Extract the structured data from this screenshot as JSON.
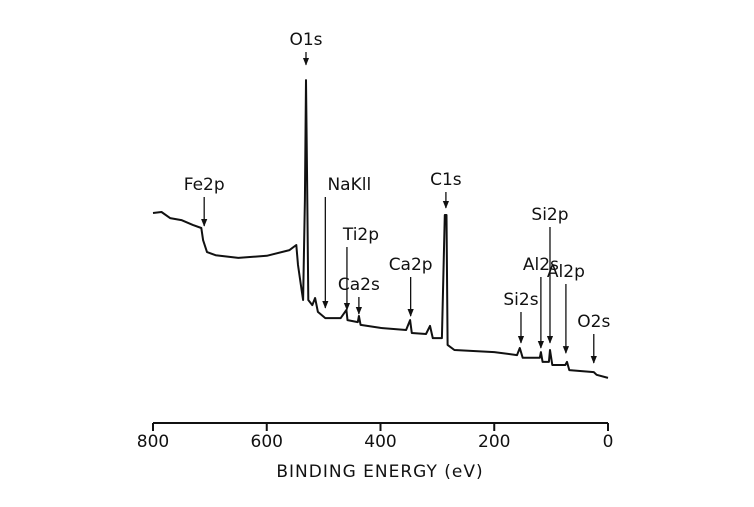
{
  "chart_data": {
    "type": "line",
    "x_label": "BINDING ENERGY (eV)",
    "xlim": [
      800,
      0
    ],
    "xticks": [
      800,
      600,
      400,
      200,
      0
    ],
    "ylim": [
      0,
      100
    ],
    "color": "#111111",
    "x": [
      800,
      785,
      770,
      750,
      730,
      715,
      712,
      705,
      690,
      650,
      600,
      560,
      548,
      545,
      540,
      536,
      533,
      531,
      529,
      527,
      520,
      515,
      510,
      497,
      470,
      460,
      458,
      440,
      438,
      435,
      400,
      355,
      348,
      345,
      320,
      313,
      308,
      292,
      287,
      284,
      282,
      270,
      200,
      160,
      155,
      150,
      120,
      118,
      115,
      104,
      102,
      98,
      75,
      72,
      68,
      25,
      20,
      0
    ],
    "values": [
      55,
      55.3,
      53.5,
      52.9,
      51.5,
      50.6,
      47,
      43.5,
      42.6,
      41.8,
      42.4,
      44.1,
      45.6,
      39.7,
      33.8,
      29.4,
      58.8,
      94.1,
      64.7,
      29.4,
      27.9,
      30,
      25.9,
      24.1,
      24.1,
      26.5,
      23.5,
      22.9,
      24.7,
      22.1,
      21.2,
      20.6,
      23.5,
      19.7,
      19.4,
      21.8,
      18.2,
      18.2,
      54.4,
      54.4,
      16.2,
      14.7,
      14.1,
      13.2,
      15.3,
      12.4,
      12.4,
      14.1,
      11.2,
      11.2,
      14.7,
      10.3,
      10.3,
      11.2,
      8.8,
      8.2,
      7.4,
      6.5
    ],
    "annotations": [
      {
        "text": "O1s",
        "x": 531,
        "y": 98
      },
      {
        "text": "Fe2p",
        "x": 710,
        "y": 50.6
      },
      {
        "text": "NaKll",
        "x": 497,
        "y": 26.5
      },
      {
        "text": "Ti2p",
        "x": 459,
        "y": 25.9
      },
      {
        "text": "Ca2s",
        "x": 438,
        "y": 24.7
      },
      {
        "text": "Ca2p",
        "x": 347,
        "y": 24.1
      },
      {
        "text": "C1s",
        "x": 285,
        "y": 55.9
      },
      {
        "text": "Si2s",
        "x": 153,
        "y": 16.2
      },
      {
        "text": "Al2s",
        "x": 118,
        "y": 14.7
      },
      {
        "text": "Si2p",
        "x": 102,
        "y": 16.2
      },
      {
        "text": "Al2p",
        "x": 74,
        "y": 13.2
      },
      {
        "text": "O2s",
        "x": 25,
        "y": 10.3
      }
    ]
  }
}
